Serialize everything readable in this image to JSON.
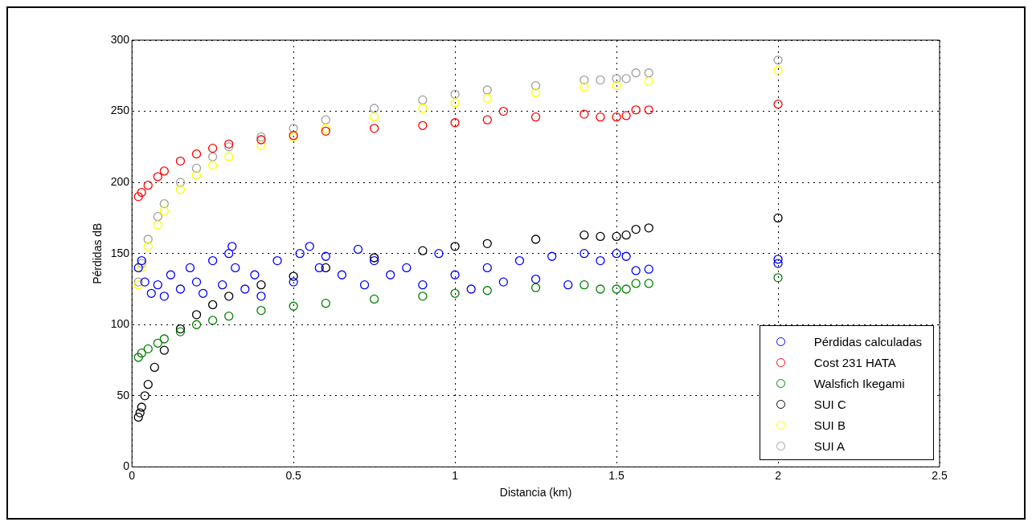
{
  "chart_data": {
    "type": "scatter",
    "xlabel": "Distancia (km)",
    "ylabel": "Pérdidas dB",
    "xlim": [
      0,
      2.5
    ],
    "xticks": [
      0,
      0.5,
      1,
      1.5,
      2,
      2.5
    ],
    "ylim": [
      0,
      300
    ],
    "yticks": [
      0,
      50,
      100,
      150,
      200,
      250,
      300
    ],
    "grid": true,
    "legend": "bottom right",
    "marker": "circle",
    "series": [
      {
        "name": "Pérdidas calculadas",
        "color": "#0000ff",
        "x": [
          0.02,
          0.03,
          0.04,
          0.06,
          0.08,
          0.1,
          0.12,
          0.15,
          0.18,
          0.2,
          0.22,
          0.25,
          0.28,
          0.3,
          0.31,
          0.32,
          0.35,
          0.38,
          0.4,
          0.45,
          0.5,
          0.52,
          0.55,
          0.58,
          0.6,
          0.65,
          0.7,
          0.72,
          0.75,
          0.8,
          0.85,
          0.9,
          0.95,
          1.0,
          1.05,
          1.1,
          1.15,
          1.2,
          1.25,
          1.3,
          1.35,
          1.4,
          1.45,
          1.5,
          1.53,
          1.56,
          1.6,
          2.0,
          2.0
        ],
        "values": [
          140,
          145,
          130,
          122,
          128,
          120,
          135,
          125,
          140,
          130,
          122,
          145,
          128,
          150,
          155,
          140,
          125,
          135,
          120,
          145,
          130,
          150,
          155,
          140,
          148,
          135,
          153,
          128,
          145,
          135,
          140,
          128,
          150,
          135,
          125,
          140,
          130,
          145,
          132,
          148,
          128,
          150,
          145,
          150,
          148,
          138,
          139,
          143,
          146
        ]
      },
      {
        "name": "Cost 231 HATA",
        "color": "#ff0000",
        "x": [
          0.02,
          0.03,
          0.05,
          0.08,
          0.1,
          0.15,
          0.2,
          0.25,
          0.3,
          0.4,
          0.5,
          0.6,
          0.75,
          0.9,
          1.0,
          1.1,
          1.15,
          1.25,
          1.4,
          1.45,
          1.5,
          1.53,
          1.56,
          1.6,
          2.0
        ],
        "values": [
          190,
          193,
          198,
          204,
          208,
          215,
          220,
          224,
          227,
          230,
          233,
          236,
          238,
          240,
          242,
          244,
          250,
          246,
          248,
          246,
          246,
          247,
          251,
          251,
          255
        ]
      },
      {
        "name": "Walsfich Ikegami",
        "color": "#008000",
        "x": [
          0.02,
          0.03,
          0.05,
          0.08,
          0.1,
          0.15,
          0.2,
          0.25,
          0.3,
          0.4,
          0.5,
          0.6,
          0.75,
          0.9,
          1.0,
          1.1,
          1.25,
          1.4,
          1.45,
          1.5,
          1.53,
          1.56,
          1.6,
          2.0
        ],
        "values": [
          77,
          80,
          83,
          87,
          90,
          95,
          100,
          103,
          106,
          110,
          113,
          115,
          118,
          120,
          122,
          124,
          126,
          128,
          125,
          125,
          125,
          129,
          129,
          133
        ]
      },
      {
        "name": "SUI C",
        "color": "#000000",
        "x": [
          0.02,
          0.025,
          0.03,
          0.04,
          0.05,
          0.07,
          0.1,
          0.15,
          0.2,
          0.25,
          0.3,
          0.4,
          0.5,
          0.6,
          0.75,
          0.9,
          1.0,
          1.1,
          1.25,
          1.4,
          1.45,
          1.5,
          1.53,
          1.56,
          1.6,
          2.0
        ],
        "values": [
          35,
          38,
          42,
          50,
          58,
          70,
          82,
          97,
          107,
          114,
          120,
          128,
          134,
          140,
          147,
          152,
          155,
          157,
          160,
          163,
          162,
          162,
          163,
          167,
          168,
          175
        ]
      },
      {
        "name": "SUI B",
        "color": "#ffff00",
        "x": [
          0.02,
          0.03,
          0.05,
          0.08,
          0.1,
          0.15,
          0.2,
          0.25,
          0.3,
          0.4,
          0.5,
          0.6,
          0.75,
          0.9,
          1.0,
          1.1,
          1.25,
          1.4,
          1.5,
          1.6,
          2.0
        ],
        "values": [
          128,
          140,
          155,
          170,
          180,
          195,
          205,
          212,
          218,
          226,
          232,
          238,
          246,
          252,
          256,
          259,
          263,
          267,
          268,
          271,
          279
        ]
      },
      {
        "name": "SUI A",
        "color": "#a0a0a0",
        "x": [
          0.02,
          0.03,
          0.05,
          0.08,
          0.1,
          0.15,
          0.2,
          0.25,
          0.3,
          0.4,
          0.5,
          0.6,
          0.75,
          0.9,
          1.0,
          1.1,
          1.25,
          1.4,
          1.45,
          1.5,
          1.53,
          1.56,
          1.6,
          2.0
        ],
        "values": [
          130,
          143,
          160,
          176,
          185,
          200,
          210,
          218,
          225,
          232,
          238,
          244,
          252,
          258,
          262,
          265,
          268,
          272,
          272,
          273,
          273,
          277,
          277,
          286
        ]
      }
    ]
  }
}
